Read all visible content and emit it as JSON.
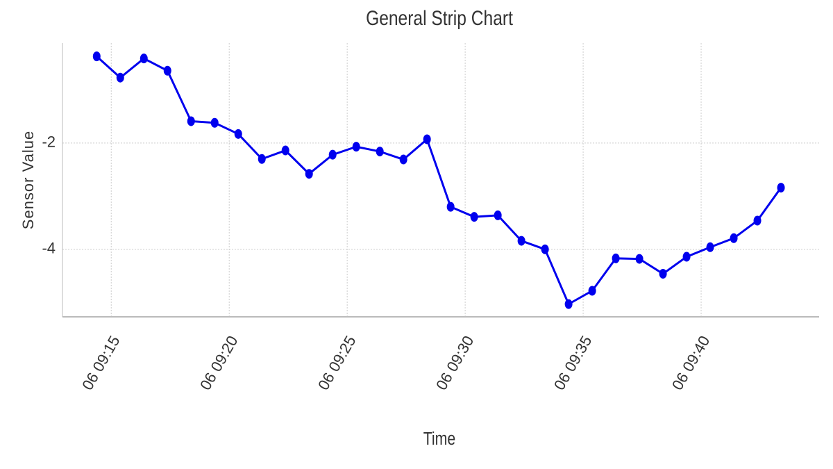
{
  "chart_data": {
    "type": "line",
    "title": "General Strip Chart",
    "x_label": "Time",
    "y_label": "Sensor Value",
    "x": [
      "06 09:14:23",
      "06 09:15:23",
      "06 09:16:23",
      "06 09:17:23",
      "06 09:18:23",
      "06 09:19:23",
      "06 09:20:23",
      "06 09:21:23",
      "06 09:22:23",
      "06 09:23:23",
      "06 09:24:23",
      "06 09:25:23",
      "06 09:26:23",
      "06 09:27:23",
      "06 09:28:23",
      "06 09:29:23",
      "06 09:30:23",
      "06 09:31:23",
      "06 09:32:23",
      "06 09:33:23",
      "06 09:34:23",
      "06 09:35:23",
      "06 09:36:23",
      "06 09:37:23",
      "06 09:38:23",
      "06 09:39:23",
      "06 09:40:23",
      "06 09:41:23",
      "06 09:42:23",
      "06 09:43:23"
    ],
    "series": [
      {
        "name": "Sensor Value",
        "color": "#0000ee",
        "values": [
          -0.37,
          -0.77,
          -0.41,
          -0.64,
          -1.59,
          -1.62,
          -1.83,
          -2.3,
          -2.14,
          -2.58,
          -2.22,
          -2.07,
          -2.16,
          -2.31,
          -1.93,
          -3.2,
          -3.39,
          -3.36,
          -3.84,
          -4.0,
          -5.03,
          -4.78,
          -4.17,
          -4.18,
          -4.46,
          -4.14,
          -3.96,
          -3.79,
          -3.46,
          -2.84
        ]
      }
    ],
    "xlim": [
      "06 09:12:56",
      "06 09:45:00"
    ],
    "xticks": [
      {
        "value": "06 09:15:00",
        "label": "06 09:15"
      },
      {
        "value": "06 09:20:00",
        "label": "06 09:20"
      },
      {
        "value": "06 09:25:00",
        "label": "06 09:25"
      },
      {
        "value": "06 09:30:00",
        "label": "06 09:30"
      },
      {
        "value": "06 09:35:00",
        "label": "06 09:35"
      },
      {
        "value": "06 09:40:00",
        "label": "06 09:40"
      }
    ],
    "ylim": [
      -5.27,
      -0.12
    ],
    "yticks": [
      -2,
      -4
    ],
    "grid": true
  }
}
